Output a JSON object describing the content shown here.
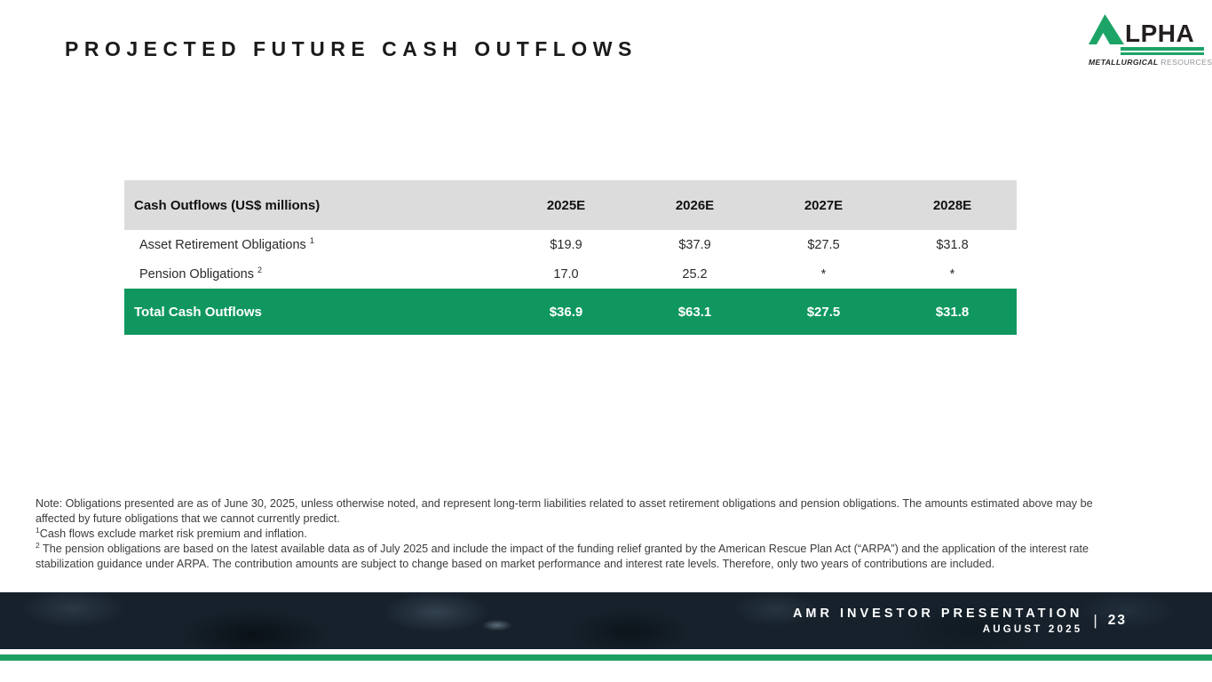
{
  "colors": {
    "green": "#0f975f",
    "logo_green": "#1ca467",
    "header_gray": "#dcdcdc",
    "footer_bg": "#16212b",
    "bottom_bar_green": "#1d9f63"
  },
  "title": "PROJECTED FUTURE CASH OUTFLOWS",
  "logo": {
    "wordmark": "LPHA",
    "tagline_bold": "METALLURGICAL",
    "tagline_light": " RESOURCES"
  },
  "table": {
    "header_label": "Cash Outflows (US$ millions)",
    "year_columns": [
      "2025E",
      "2026E",
      "2027E",
      "2028E"
    ],
    "rows": [
      {
        "label": "Asset Retirement Obligations ",
        "footnote_ref": "1",
        "values": [
          "$19.9",
          "$37.9",
          "$27.5",
          "$31.8"
        ]
      },
      {
        "label": "Pension Obligations ",
        "footnote_ref": "2",
        "values": [
          "17.0",
          "25.2",
          "*",
          "*"
        ]
      }
    ],
    "total_row": {
      "label": "Total Cash Outflows",
      "values": [
        "$36.9",
        "$63.1",
        "$27.5",
        "$31.8"
      ]
    }
  },
  "notes": {
    "note": "Note: Obligations presented are as of June 30, 2025, unless otherwise noted, and represent long-term liabilities related to asset retirement obligations and pension obligations. The amounts estimated above may be affected by future obligations that we cannot currently predict.",
    "footnote1_sup": "1",
    "footnote1": "Cash flows exclude market risk premium and inflation.",
    "footnote2_sup": "2",
    "footnote2": " The pension obligations are based on the latest available data as of July 2025 and include the impact of the funding relief granted by the American Rescue Plan Act (“ARPA”) and the application of the interest rate stabilization guidance under ARPA. The contribution amounts are subject to change based on market performance and interest rate levels. Therefore, only two years of contributions are included."
  },
  "footer": {
    "presentation": "AMR INVESTOR PRESENTATION",
    "separator": "|",
    "page_number": "23",
    "date": "AUGUST 2025"
  }
}
